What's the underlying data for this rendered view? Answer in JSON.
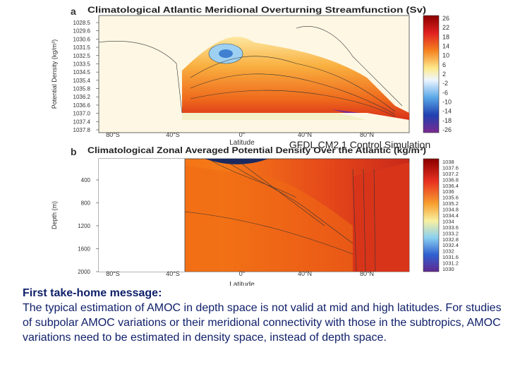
{
  "panels": [
    {
      "letter": "a",
      "title": "Climatological Atlantic Meridional Overturning Streamfunction (Sv)",
      "y_label": "Potential Density (kg/m³)",
      "y_ticks": [
        "1028.5",
        "1029.6",
        "1030.6",
        "1031.5",
        "1032.5",
        "1033.5",
        "1034.5",
        "1035.4",
        "1035.8",
        "1036.2",
        "1036.6",
        "1037.0",
        "1037.4",
        "1037.8"
      ],
      "x_label": "Latitude",
      "x_ticks": [
        "80°S",
        "40°S",
        "0°",
        "40°N",
        "80°N"
      ],
      "colorbar": [
        "26",
        "22",
        "18",
        "14",
        "10",
        "6",
        "2",
        "-2",
        "-6",
        "-10",
        "-14",
        "-18",
        "-26"
      ]
    },
    {
      "letter": "b",
      "title": "Climatological Zonal Averaged Potential Density Over the Atlantic (kg/m³)",
      "y_label": "Depth (m)",
      "y_ticks": [
        "400",
        "800",
        "1200",
        "1600",
        "2000"
      ],
      "x_label": "Latitude",
      "x_ticks": [
        "80°S",
        "40°S",
        "0°",
        "40°N",
        "80°N"
      ],
      "colorbar": [
        "1038",
        "1037.6",
        "1037.2",
        "1036.8",
        "1036.4",
        "1036",
        "1035.6",
        "1035.2",
        "1034.8",
        "1034.4",
        "1034",
        "1033.6",
        "1033.2",
        "1032.8",
        "1032.4",
        "1032",
        "1031.6",
        "1031.2",
        "1030"
      ]
    }
  ],
  "overlay": "GFDL CM2.1 Control Simulation",
  "message": {
    "heading": "First take-home message:",
    "body": "The typical estimation of AMOC in depth space is not valid at mid and high latitudes. For studies of subpolar AMOC variations or their meridional connectivity with those in the subtropics, AMOC variations need to be estimated in density space, instead of depth space."
  }
}
